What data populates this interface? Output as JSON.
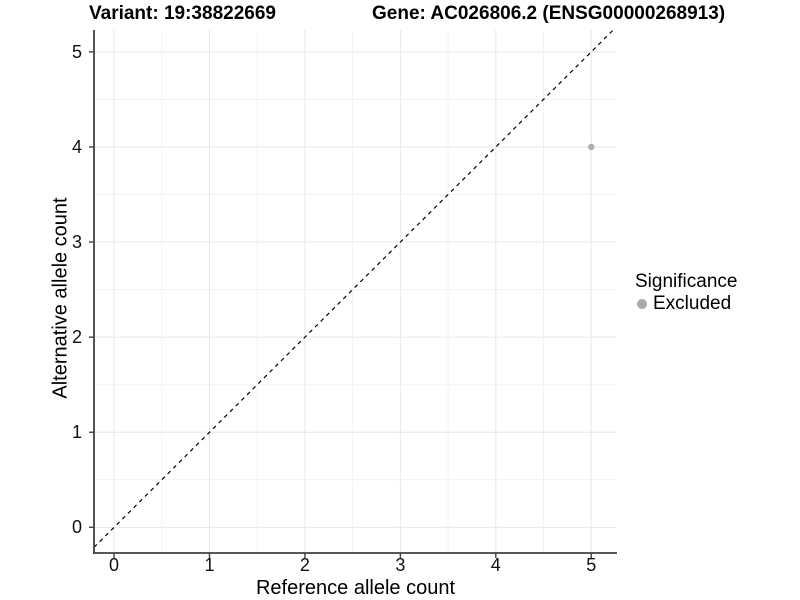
{
  "titles": {
    "variant": "Variant: 19:38822669",
    "gene": "Gene: AC026806.2 (ENSG00000268913)"
  },
  "chart_data": {
    "type": "scatter",
    "title_left": "Variant: 19:38822669",
    "title_right": "Gene: AC026806.2 (ENSG00000268913)",
    "xlabel": "Reference allele count",
    "ylabel": "Alternative allele count",
    "xlim": [
      -0.21,
      5.27
    ],
    "ylim": [
      -0.27,
      5.23
    ],
    "x_ticks": [
      0,
      1,
      2,
      3,
      4,
      5
    ],
    "y_ticks": [
      0,
      1,
      2,
      3,
      4,
      5
    ],
    "minor_grid_step": 0.5,
    "grid": true,
    "reference_line": {
      "type": "identity",
      "equation": "y = x",
      "style": "dashed",
      "color": "#000000"
    },
    "points": [
      {
        "x": 5,
        "y": 4,
        "series": "Excluded"
      }
    ],
    "legend": {
      "title": "Significance",
      "position": "right",
      "items": [
        {
          "label": "Excluded",
          "color": "#a9a9a9"
        }
      ]
    },
    "colors": {
      "point": "#aeaeae",
      "grid_major": "#e8e8e8",
      "grid_minor": "#f2f2f2",
      "axis": "#404040",
      "tick": "#404040",
      "text": "#000000",
      "background": "#ffffff"
    }
  }
}
